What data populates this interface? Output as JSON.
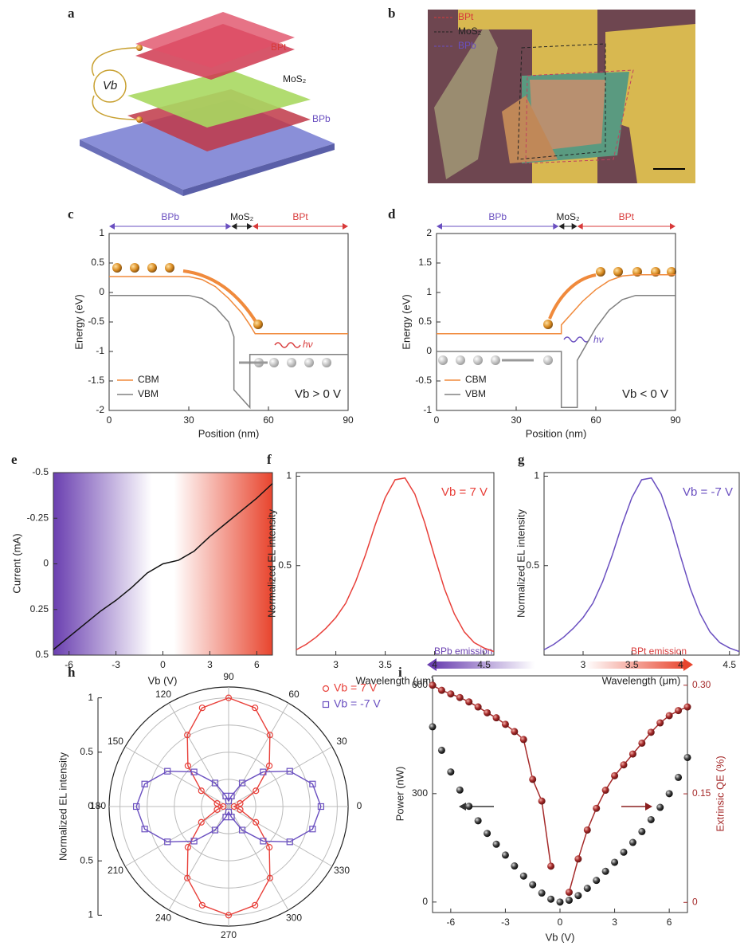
{
  "panel_labels": [
    "a",
    "b",
    "c",
    "d",
    "e",
    "f",
    "g",
    "h",
    "i"
  ],
  "figure_a": {
    "bias": "Vb",
    "labels": [
      "BPt",
      "MoS₂",
      "BPb"
    ]
  },
  "figure_b": {
    "legend": [
      "BPt",
      "MoS₂",
      "BPb"
    ]
  },
  "chart_data": [
    {
      "type": "line",
      "xlabel": "Position (nm)",
      "ylabel": "Energy (eV)",
      "xlim": [
        0,
        90
      ],
      "xticks": [
        0,
        30,
        60,
        90
      ],
      "ylim": [
        -2,
        1
      ],
      "yticks": [
        1,
        0.5,
        0,
        -0.5,
        -1,
        -1.5,
        -2
      ],
      "regions": [
        {
          "name": "BPb",
          "xrange": [
            0,
            46
          ],
          "color": "#6a4fc0"
        },
        {
          "name": "MoS₂",
          "xrange": [
            46,
            54
          ],
          "color": "#222222"
        },
        {
          "name": "BPt",
          "xrange": [
            54,
            90
          ],
          "color": "#d83a3a"
        }
      ],
      "series": [
        {
          "name": "CBM",
          "color": "#f08a3c",
          "x": [
            0,
            30,
            35,
            40,
            45,
            50,
            53,
            55,
            90
          ],
          "values": [
            0.27,
            0.27,
            0.22,
            0.1,
            -0.1,
            -0.35,
            -0.55,
            -0.7,
            -0.7
          ]
        },
        {
          "name": "VBM",
          "color": "#808080",
          "x": [
            0,
            30,
            35,
            40,
            45,
            47,
            47,
            53,
            53,
            90
          ],
          "values": [
            -0.05,
            -0.05,
            -0.1,
            -0.25,
            -0.5,
            -0.75,
            -1.65,
            -1.95,
            -1.05,
            -1.05
          ]
        }
      ],
      "legend": "lower left",
      "annotations": [
        "Vb > 0 V",
        "hν"
      ]
    },
    {
      "type": "line",
      "xlabel": "Position (nm)",
      "ylabel": "Energy (eV)",
      "xlim": [
        0,
        90
      ],
      "xticks": [
        0,
        30,
        60,
        90
      ],
      "ylim": [
        -1,
        2
      ],
      "yticks": [
        2,
        1.5,
        1,
        0.5,
        0,
        -0.5,
        -1
      ],
      "regions": [
        {
          "name": "BPb",
          "xrange": [
            0,
            46
          ],
          "color": "#6a4fc0"
        },
        {
          "name": "MoS₂",
          "xrange": [
            46,
            53
          ],
          "color": "#222222"
        },
        {
          "name": "BPt",
          "xrange": [
            53,
            90
          ],
          "color": "#d83a3a"
        }
      ],
      "series": [
        {
          "name": "CBM",
          "color": "#f08a3c",
          "x": [
            0,
            47,
            47,
            50,
            55,
            60,
            65,
            70,
            75,
            90
          ],
          "values": [
            0.3,
            0.3,
            0.45,
            0.6,
            0.85,
            1.05,
            1.2,
            1.28,
            1.3,
            1.3
          ]
        },
        {
          "name": "VBM",
          "color": "#808080",
          "x": [
            0,
            47,
            47,
            53,
            53,
            60,
            65,
            70,
            75,
            90
          ],
          "values": [
            0,
            0,
            -0.95,
            -0.95,
            -0.15,
            0.4,
            0.7,
            0.88,
            0.95,
            0.95
          ]
        }
      ],
      "legend": "lower left",
      "annotations": [
        "Vb < 0 V",
        "hν"
      ]
    },
    {
      "type": "line",
      "xlabel": "Vb (V)",
      "ylabel": "Current (mA)",
      "xlim": [
        -7,
        7
      ],
      "xticks": [
        -6,
        -3,
        0,
        3,
        6
      ],
      "ylim": [
        0.5,
        -0.5
      ],
      "yticks": [
        -0.5,
        -0.25,
        0,
        0.25,
        0.5
      ],
      "x": [
        -7,
        -6,
        -5,
        -4,
        -3,
        -2,
        -1,
        0,
        1,
        2,
        3,
        4,
        5,
        6,
        7
      ],
      "series": [
        {
          "color": "#111111",
          "values": [
            0.47,
            0.4,
            0.33,
            0.26,
            0.2,
            0.13,
            0.05,
            0,
            -0.02,
            -0.07,
            -0.15,
            -0.22,
            -0.29,
            -0.36,
            -0.44
          ]
        }
      ]
    },
    {
      "type": "line",
      "xlabel": "Wavelength (μm)",
      "ylabel": "Normalized EL intensity",
      "xlim": [
        2.6,
        4.6
      ],
      "xticks": [
        3,
        3.5,
        4,
        4.5
      ],
      "ylim": [
        0,
        1.02
      ],
      "yticks": [
        0.5,
        1
      ],
      "x": [
        2.6,
        2.7,
        2.8,
        2.9,
        3.0,
        3.1,
        3.2,
        3.3,
        3.4,
        3.5,
        3.6,
        3.7,
        3.8,
        3.9,
        4.0,
        4.1,
        4.2,
        4.3,
        4.4,
        4.5,
        4.6
      ],
      "series": [
        {
          "color": "#e8403a",
          "values": [
            0.03,
            0.06,
            0.1,
            0.15,
            0.21,
            0.29,
            0.41,
            0.56,
            0.73,
            0.88,
            0.98,
            0.99,
            0.9,
            0.74,
            0.55,
            0.37,
            0.23,
            0.13,
            0.07,
            0.04,
            0.02
          ]
        }
      ],
      "annotations": [
        "Vb = 7 V"
      ]
    },
    {
      "type": "line",
      "xlabel": "Wavelength (μm)",
      "ylabel": "Normalized EL intensity",
      "xlim": [
        2.6,
        4.6
      ],
      "xticks": [
        3,
        3.5,
        4,
        4.5
      ],
      "ylim": [
        0,
        1.02
      ],
      "yticks": [
        0.5,
        1
      ],
      "x": [
        2.6,
        2.7,
        2.8,
        2.9,
        3.0,
        3.1,
        3.2,
        3.3,
        3.4,
        3.5,
        3.6,
        3.7,
        3.8,
        3.9,
        4.0,
        4.1,
        4.2,
        4.3,
        4.4,
        4.5,
        4.6
      ],
      "series": [
        {
          "color": "#6a4fc0",
          "values": [
            0.03,
            0.06,
            0.1,
            0.15,
            0.21,
            0.29,
            0.41,
            0.56,
            0.73,
            0.88,
            0.98,
            0.99,
            0.9,
            0.74,
            0.55,
            0.37,
            0.23,
            0.13,
            0.07,
            0.04,
            0.02
          ]
        }
      ],
      "annotations": [
        "Vb = -7 V"
      ]
    },
    {
      "type": "polar",
      "ylabel": "Normalized EL intensity",
      "rlim": [
        0,
        1.1
      ],
      "rgrid": [
        0.25,
        0.5,
        0.75,
        1
      ],
      "yticks": [
        1,
        0.5,
        0,
        0.5,
        1
      ],
      "angle_ticks": [
        0,
        30,
        60,
        90,
        120,
        150,
        180,
        210,
        240,
        270,
        300,
        330
      ],
      "theta": [
        0,
        15,
        30,
        45,
        60,
        75,
        90,
        105,
        120,
        135,
        150,
        165,
        180,
        195,
        210,
        225,
        240,
        255,
        270,
        285,
        300,
        315,
        330,
        345
      ],
      "series": [
        {
          "name": "Vb = 7 V",
          "color": "#e8403a",
          "marker": "circle",
          "values": [
            0.05,
            0.11,
            0.29,
            0.53,
            0.76,
            0.94,
            1.0,
            0.94,
            0.76,
            0.53,
            0.29,
            0.11,
            0.05,
            0.11,
            0.29,
            0.53,
            0.76,
            0.94,
            1.0,
            0.94,
            0.76,
            0.53,
            0.29,
            0.11
          ]
        },
        {
          "name": "Vb = -7 V",
          "color": "#6a4fc0",
          "marker": "square",
          "values": [
            0.85,
            0.8,
            0.65,
            0.45,
            0.25,
            0.1,
            0.05,
            0.1,
            0.25,
            0.45,
            0.65,
            0.8,
            0.85,
            0.8,
            0.65,
            0.45,
            0.25,
            0.1,
            0.05,
            0.1,
            0.25,
            0.45,
            0.65,
            0.8
          ]
        }
      ]
    },
    {
      "type": "line",
      "xlabel": "Vb (V)",
      "ylabel": "Power (nW)",
      "y2label": "Extrinsic QE (%)",
      "xlim": [
        -7,
        7
      ],
      "xticks": [
        -6,
        -3,
        0,
        3,
        6
      ],
      "ylim": [
        -29,
        626
      ],
      "yticks": [
        0,
        300,
        600
      ],
      "y2lim": [
        -0.014,
        0.313
      ],
      "y2ticks": [
        0,
        0.15,
        {
          "value": 0.3,
          "label": "0.30"
        }
      ],
      "y2color": "#a52a2a",
      "x": [
        -7,
        -6.5,
        -6,
        -5.5,
        -5,
        -4.5,
        -4,
        -3.5,
        -3,
        -2.5,
        -2,
        -1.5,
        -1,
        -0.5,
        0,
        0.5,
        1,
        1.5,
        2,
        2.5,
        3,
        3.5,
        4,
        4.5,
        5,
        5.5,
        6,
        6.5,
        7
      ],
      "series": [
        {
          "color": "#222222",
          "marker": "ball",
          "line": false,
          "values": [
            485,
            420,
            360,
            310,
            265,
            225,
            190,
            160,
            130,
            100,
            72,
            48,
            25,
            8,
            0,
            5,
            18,
            38,
            60,
            85,
            110,
            138,
            165,
            195,
            228,
            262,
            300,
            345,
            400
          ]
        },
        {
          "axis": "y2",
          "color": "#a52a2a",
          "marker": "redball",
          "values": [
            0.3,
            0.293,
            0.288,
            0.283,
            0.277,
            0.27,
            0.262,
            0.255,
            0.246,
            0.236,
            0.225,
            0.17,
            0.14,
            0.05,
            null,
            0.014,
            0.06,
            0.1,
            0.13,
            0.155,
            0.175,
            0.19,
            0.205,
            0.22,
            0.235,
            0.248,
            0.258,
            0.265,
            0.27
          ]
        }
      ],
      "annotations": [
        "BPb emission",
        "BPt emission"
      ]
    }
  ]
}
